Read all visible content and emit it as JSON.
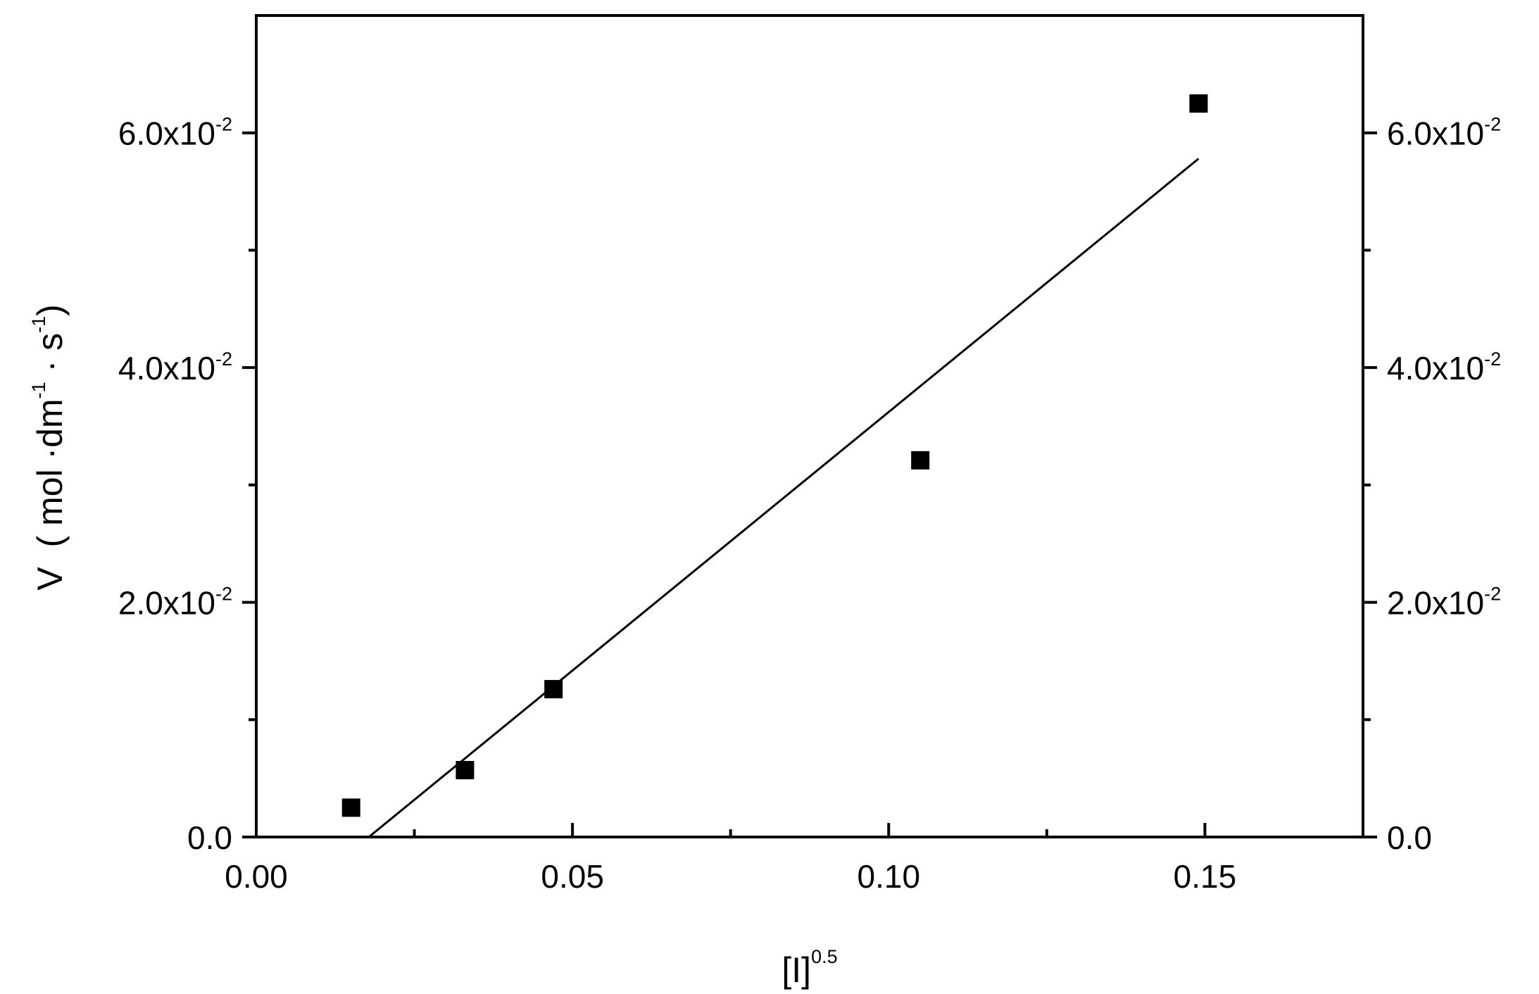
{
  "chart_data": {
    "type": "scatter",
    "xlabel": {
      "base": "[I]",
      "sup": "0.5"
    },
    "ylabel": {
      "parts": [
        {
          "text": "V  ( mol ·dm"
        },
        {
          "text": "-1",
          "sup": true
        },
        {
          "text": " · s"
        },
        {
          "text": "-1",
          "sup": true
        },
        {
          "text": ")"
        }
      ]
    },
    "xlim": [
      0.0,
      0.175
    ],
    "ylim": [
      0.0,
      0.07
    ],
    "x_ticks": [
      {
        "value": 0.0,
        "label": "0.00"
      },
      {
        "value": 0.05,
        "label": "0.05"
      },
      {
        "value": 0.1,
        "label": "0.10"
      },
      {
        "value": 0.15,
        "label": "0.15"
      }
    ],
    "x_minor_ticks": [
      0.025,
      0.075,
      0.125
    ],
    "y_ticks": [
      {
        "value": 0.0,
        "label": "0.0",
        "sup": ""
      },
      {
        "value": 0.02,
        "label": "2.0x10",
        "sup": "-2"
      },
      {
        "value": 0.04,
        "label": "4.0x10",
        "sup": "-2"
      },
      {
        "value": 0.06,
        "label": "6.0x10",
        "sup": "-2"
      }
    ],
    "y_minor_ticks": [
      0.01,
      0.03,
      0.05
    ],
    "right_axis": true,
    "grid": false,
    "points": {
      "marker": "square",
      "color": "#000000",
      "x": [
        0.015,
        0.033,
        0.047,
        0.105,
        0.149
      ],
      "y": [
        0.0025,
        0.0057,
        0.0126,
        0.0321,
        0.0625
      ]
    },
    "fit_line": {
      "color": "#000000",
      "x": [
        0.0178,
        0.149
      ],
      "y": [
        0.0,
        0.0578
      ]
    }
  }
}
